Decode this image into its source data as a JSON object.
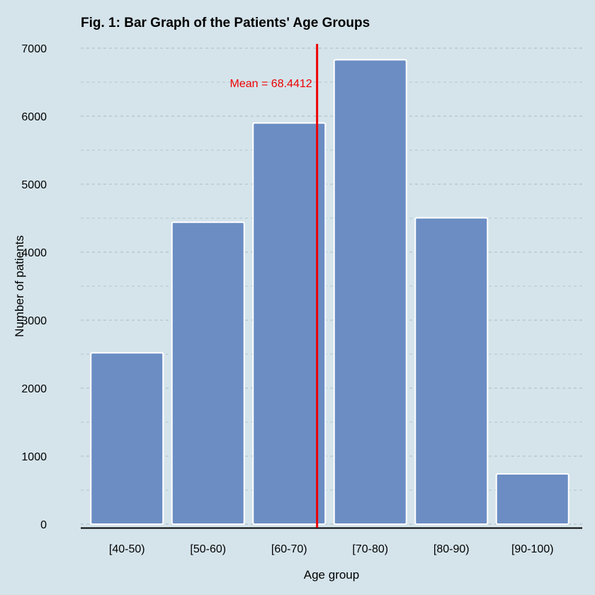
{
  "chart_data": {
    "type": "bar",
    "title": "Fig. 1: Bar Graph of the Patients' Age Groups",
    "xlabel": "Age group",
    "ylabel": "Number of patients",
    "categories": [
      "[40-50)",
      "[50-60)",
      "[60-70)",
      "[70-80)",
      "[80-90)",
      "[90-100)"
    ],
    "values": [
      2520,
      4440,
      5900,
      6830,
      4505,
      740
    ],
    "ylim": [
      0,
      7000
    ],
    "yticks": [
      "0",
      "1000",
      "2000",
      "3000",
      "4000",
      "5000",
      "6000",
      "7000"
    ],
    "grid": true,
    "legend": "none",
    "bar_color": "#6b8dc3",
    "background_color": "#d5e4eb",
    "mean": {
      "label": "Mean =  68.4412",
      "value": 68.4412,
      "color": "#ee0000"
    }
  }
}
